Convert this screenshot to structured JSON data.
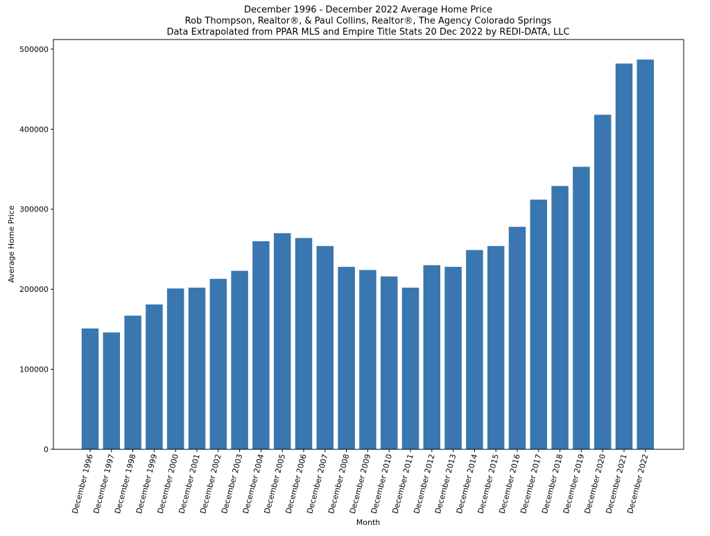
{
  "chart_data": {
    "type": "bar",
    "title_lines": [
      "December 1996 - December 2022 Average Home Price",
      "Rob Thompson, Realtor®, & Paul Collins, Realtor®, The Agency Colorado Springs",
      "Data Extrapolated from PPAR MLS and Empire Title Stats 20 Dec 2022 by REDI-DATA, LLC"
    ],
    "xlabel": "Month",
    "ylabel": "Average Home Price",
    "ylim": [
      0,
      512000
    ],
    "yticks": [
      0,
      100000,
      200000,
      300000,
      400000,
      500000
    ],
    "ytick_labels": [
      "0",
      "100000",
      "200000",
      "300000",
      "400000",
      "500000"
    ],
    "bar_color": "#3a76af",
    "grid": false,
    "categories": [
      "December 1996",
      "December 1997",
      "December 1998",
      "December 1999",
      "December 2000",
      "December 2001",
      "December 2002",
      "December 2003",
      "December 2004",
      "December 2005",
      "December 2006",
      "December 2007",
      "December 2008",
      "December 2009",
      "December 2010",
      "December 2011",
      "December 2012",
      "December 2013",
      "December 2014",
      "December 2015",
      "December 2016",
      "December 2017",
      "December 2018",
      "December 2019",
      "December 2020",
      "December 2021",
      "December 2022"
    ],
    "values": [
      151000,
      146000,
      167000,
      181000,
      201000,
      202000,
      213000,
      223000,
      260000,
      270000,
      264000,
      254000,
      228000,
      224000,
      216000,
      202000,
      230000,
      228000,
      249000,
      254000,
      278000,
      312000,
      329000,
      353000,
      418000,
      482000,
      487000
    ]
  }
}
